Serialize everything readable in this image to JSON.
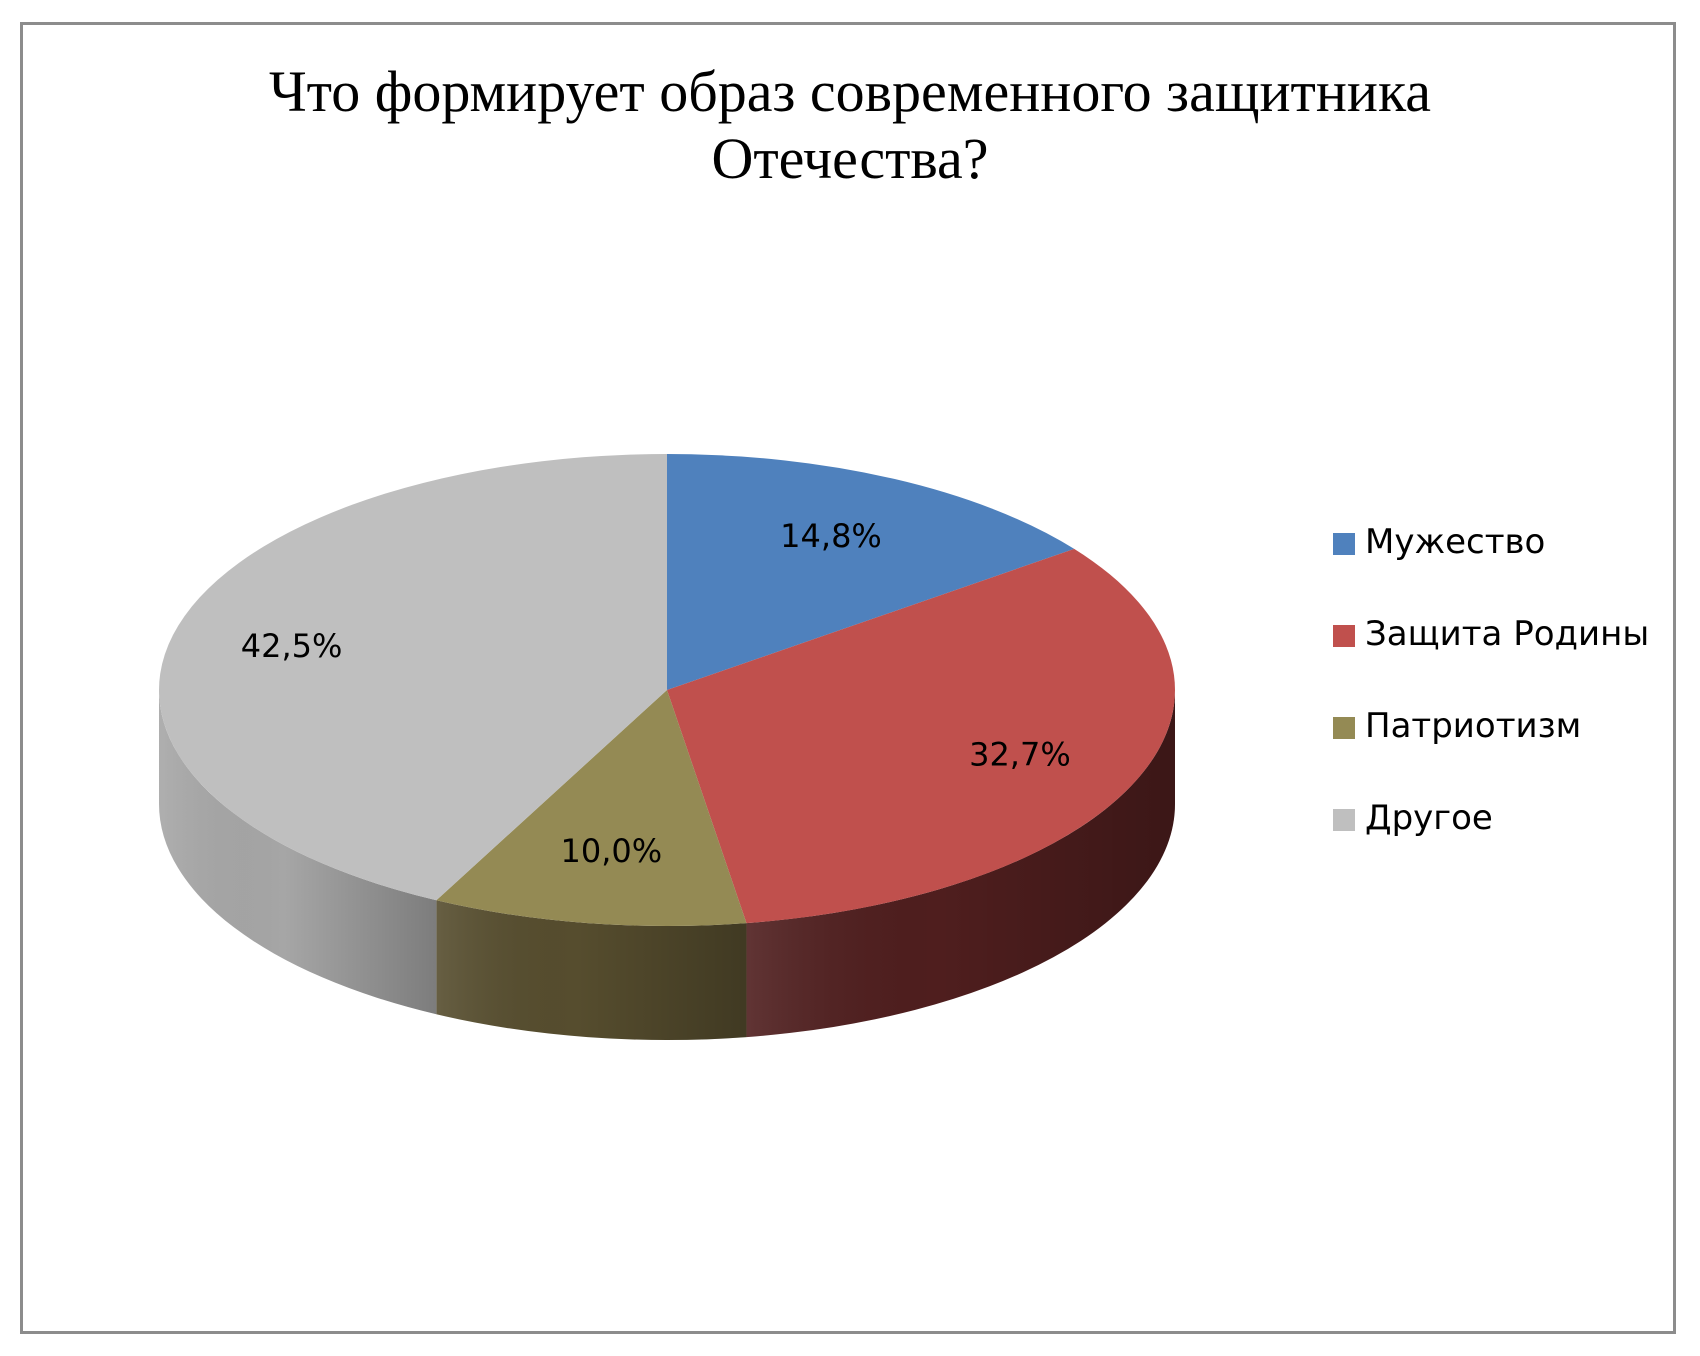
{
  "chart_data": {
    "type": "pie",
    "title_lines": [
      "Что формирует образ современного защитника",
      "Отечества?"
    ],
    "categories": [
      "Мужество",
      "Защита Родины",
      "Патриотизм",
      "Другое"
    ],
    "values": [
      14.8,
      32.7,
      10.0,
      42.5
    ],
    "data_labels": [
      "14,8%",
      "32,7%",
      "10,0%",
      "42,5%"
    ],
    "colors": [
      "#4f81bd",
      "#c0504d",
      "#948a54",
      "#bfbfbf"
    ],
    "side_colors": [
      "#2c4a6e",
      "#4f1e1e",
      "#564d2e",
      "#a6a6a6"
    ],
    "style": "3d",
    "legend_position": "right"
  }
}
